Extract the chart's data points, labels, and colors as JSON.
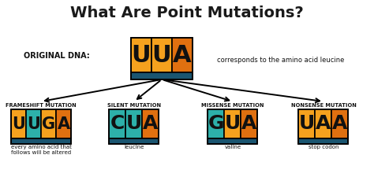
{
  "title": "What Are Point Mutations?",
  "bg_color": "#ffffff",
  "title_color": "#1a1a1a",
  "orange": "#f5a11e",
  "dark_orange": "#e07010",
  "teal": "#2db0aa",
  "blue_bar": "#1a5570",
  "original_dna_label": "ORIGINAL DNA:",
  "original_letters": [
    "U",
    "U",
    "A"
  ],
  "original_colors": [
    "#f5a11e",
    "#f5a11e",
    "#e07010"
  ],
  "corresponds_text": "corresponds to the amino acid leucine",
  "mutations": [
    {
      "label": "FRAMESHIFT MUTATION",
      "letters": [
        "U",
        "U",
        "G",
        "A"
      ],
      "colors": [
        "#f5a11e",
        "#2db0aa",
        "#f5a11e",
        "#e07010"
      ],
      "sublabel": "every amino acid that\nfollows will be altered"
    },
    {
      "label": "SILENT MUTATION",
      "letters": [
        "C",
        "U",
        "A"
      ],
      "colors": [
        "#2db0aa",
        "#2db0aa",
        "#e07010"
      ],
      "sublabel": "leucine"
    },
    {
      "label": "MISSENSE MUTATION",
      "letters": [
        "G",
        "U",
        "A"
      ],
      "colors": [
        "#2db0aa",
        "#f5a11e",
        "#e07010"
      ],
      "sublabel": "valine"
    },
    {
      "label": "NONSENSE MUTATION",
      "letters": [
        "U",
        "A",
        "A"
      ],
      "colors": [
        "#f5a11e",
        "#f5a11e",
        "#e07010"
      ],
      "sublabel": "stop codon"
    }
  ]
}
